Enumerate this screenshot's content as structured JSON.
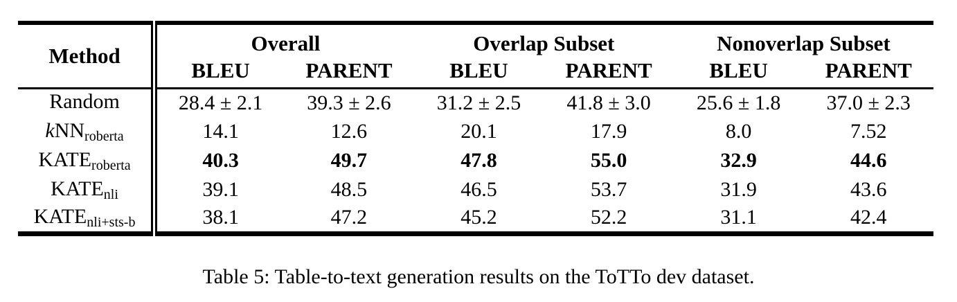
{
  "table": {
    "columns": {
      "method_label": "Method",
      "groups": [
        {
          "label": "Overall"
        },
        {
          "label": "Overlap Subset"
        },
        {
          "label": "Nonoverlap Subset"
        }
      ],
      "metrics": [
        "BLEU",
        "PARENT",
        "BLEU",
        "PARENT",
        "BLEU",
        "PARENT"
      ]
    },
    "rows": [
      {
        "method": {
          "prefix": "",
          "base": "Random",
          "sub": ""
        },
        "bold": false,
        "values": [
          "28.4 ± 2.1",
          "39.3 ± 2.6",
          "31.2 ± 2.5",
          "41.8 ± 3.0",
          "25.6 ± 1.8",
          "37.0 ± 2.3"
        ]
      },
      {
        "method": {
          "prefix": "k",
          "base": "NN",
          "sub": "roberta"
        },
        "bold": false,
        "values": [
          "14.1",
          "12.6",
          "20.1",
          "17.9",
          "8.0",
          "7.52"
        ]
      },
      {
        "method": {
          "prefix": "",
          "base": "KATE",
          "sub": "roberta"
        },
        "bold": true,
        "values": [
          "40.3",
          "49.7",
          "47.8",
          "55.0",
          "32.9",
          "44.6"
        ]
      },
      {
        "method": {
          "prefix": "",
          "base": "KATE",
          "sub": "nli"
        },
        "bold": false,
        "values": [
          "39.1",
          "48.5",
          "46.5",
          "53.7",
          "31.9",
          "43.6"
        ]
      },
      {
        "method": {
          "prefix": "",
          "base": "KATE",
          "sub": "nli+sts-b"
        },
        "bold": false,
        "values": [
          "38.1",
          "47.2",
          "45.2",
          "52.2",
          "31.1",
          "42.4"
        ]
      }
    ]
  },
  "caption": "Table 5: Table-to-text generation results on the ToTTo dev dataset."
}
